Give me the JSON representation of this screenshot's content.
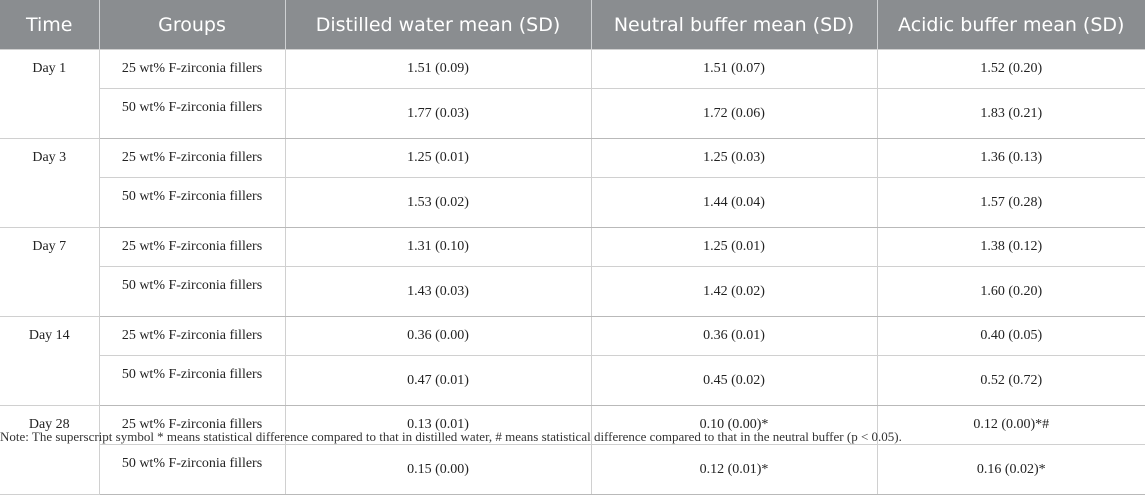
{
  "header": [
    "Time",
    "Groups",
    "Distilled water mean (SD)",
    "Neutral buffer mean (SD)",
    "Acidic buffer mean (SD)"
  ],
  "rows": [
    {
      "time": "Day 1",
      "group": "25 wt% F-zirconia fillers",
      "water": "1.51 (0.09)",
      "neutral": "1.51 (0.07)",
      "acidic": "1.52 (0.20)"
    },
    {
      "time": "",
      "group": "50 wt% F-zirconia fillers",
      "water": "1.77 (0.03)",
      "neutral": "1.72 (0.06)",
      "acidic": "1.83 (0.21)"
    },
    {
      "time": "Day 3",
      "group": "25 wt% F-zirconia fillers",
      "water": "1.25 (0.01)",
      "neutral": "1.25 (0.03)",
      "acidic": "1.36 (0.13)"
    },
    {
      "time": "",
      "group": "50 wt% F-zirconia fillers",
      "water": "1.53 (0.02)",
      "neutral": "1.44 (0.04)",
      "acidic": "1.57 (0.28)"
    },
    {
      "time": "Day 7",
      "group": "25 wt% F-zirconia fillers",
      "water": "1.31 (0.10)",
      "neutral": "1.25 (0.01)",
      "acidic": "1.38 (0.12)"
    },
    {
      "time": "",
      "group": "50 wt% F-zirconia fillers",
      "water": "1.43 (0.03)",
      "neutral": "1.42 (0.02)",
      "acidic": "1.60 (0.20)"
    },
    {
      "time": "Day 14",
      "group": "25 wt% F-zirconia fillers",
      "water": "0.36 (0.00)",
      "neutral": "0.36 (0.01)",
      "acidic": "0.40 (0.05)"
    },
    {
      "time": "",
      "group": "50 wt% F-zirconia fillers",
      "water": "0.47 (0.01)",
      "neutral": "0.45 (0.02)",
      "acidic": "0.52 (0.72)"
    },
    {
      "time": "Day 28",
      "group": "25 wt% F-zirconia fillers",
      "water": "0.13 (0.01)",
      "neutral": "0.10 (0.00)*",
      "acidic": "0.12 (0.00)*#"
    },
    {
      "time": "",
      "group": "50 wt% F-zirconia fillers",
      "water": "0.15 (0.00)",
      "neutral": "0.12 (0.01)*",
      "acidic": "0.16 (0.02)*"
    }
  ],
  "note": "Note: The superscript symbol * means statistical difference compared to that in distilled water, # means statistical difference compared to that in the neutral buffer (p < 0.05)."
}
